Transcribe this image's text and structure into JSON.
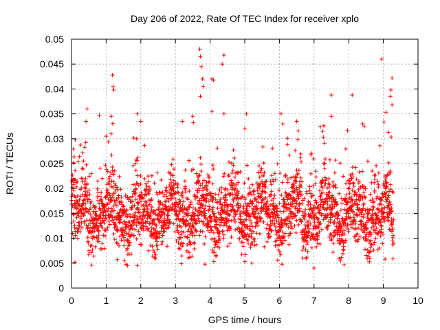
{
  "chart_data": {
    "type": "scatter",
    "title": "Day 206 of 2022, Rate Of TEC Index for receiver xplo",
    "xlabel": "GPS time / hours",
    "ylabel": "ROTI / TECUs",
    "xlim": [
      0,
      10
    ],
    "ylim": [
      0,
      0.05
    ],
    "x_ticks": [
      "0",
      "1",
      "2",
      "3",
      "4",
      "5",
      "6",
      "7",
      "8",
      "9",
      "10"
    ],
    "y_ticks": [
      "0",
      "0.005",
      "0.01",
      "0.015",
      "0.02",
      "0.025",
      "0.03",
      "0.035",
      "0.04",
      "0.045",
      "0.05"
    ],
    "grid": true,
    "marker": "+",
    "series_color": "#ff0000",
    "data_extent_x": [
      0,
      9.3
    ],
    "bulk_band": [
      0.006,
      0.024
    ],
    "notable_points": [
      {
        "x": 0.45,
        "y": 0.036
      },
      {
        "x": 0.42,
        "y": 0.0335
      },
      {
        "x": 1.18,
        "y": 0.0428
      },
      {
        "x": 1.2,
        "y": 0.0405
      },
      {
        "x": 1.22,
        "y": 0.0398
      },
      {
        "x": 1.0,
        "y": 0.0305
      },
      {
        "x": 1.15,
        "y": 0.0345
      },
      {
        "x": 1.9,
        "y": 0.035
      },
      {
        "x": 1.88,
        "y": 0.03
      },
      {
        "x": 2.0,
        "y": 0.0335
      },
      {
        "x": 3.2,
        "y": 0.0335
      },
      {
        "x": 3.5,
        "y": 0.0345
      },
      {
        "x": 3.7,
        "y": 0.048
      },
      {
        "x": 3.72,
        "y": 0.0465
      },
      {
        "x": 3.75,
        "y": 0.0445
      },
      {
        "x": 3.78,
        "y": 0.042
      },
      {
        "x": 3.8,
        "y": 0.0405
      },
      {
        "x": 3.72,
        "y": 0.0385
      },
      {
        "x": 4.05,
        "y": 0.042
      },
      {
        "x": 4.1,
        "y": 0.0418
      },
      {
        "x": 4.05,
        "y": 0.0355
      },
      {
        "x": 4.4,
        "y": 0.0468
      },
      {
        "x": 4.35,
        "y": 0.045
      },
      {
        "x": 4.4,
        "y": 0.035
      },
      {
        "x": 5.05,
        "y": 0.035
      },
      {
        "x": 5.0,
        "y": 0.032
      },
      {
        "x": 6.05,
        "y": 0.035
      },
      {
        "x": 6.1,
        "y": 0.033
      },
      {
        "x": 6.5,
        "y": 0.0335
      },
      {
        "x": 7.25,
        "y": 0.0315
      },
      {
        "x": 7.5,
        "y": 0.0388
      },
      {
        "x": 7.5,
        "y": 0.0345
      },
      {
        "x": 8.1,
        "y": 0.0388
      },
      {
        "x": 8.4,
        "y": 0.033
      },
      {
        "x": 8.45,
        "y": 0.0325
      },
      {
        "x": 8.95,
        "y": 0.046
      },
      {
        "x": 9.25,
        "y": 0.0422
      },
      {
        "x": 9.22,
        "y": 0.0398
      },
      {
        "x": 9.2,
        "y": 0.0385
      },
      {
        "x": 9.25,
        "y": 0.0368
      },
      {
        "x": 9.15,
        "y": 0.0313
      },
      {
        "x": 0.1,
        "y": 0.0052
      },
      {
        "x": 1.9,
        "y": 0.0045
      },
      {
        "x": 3.85,
        "y": 0.0048
      },
      {
        "x": 5.2,
        "y": 0.005
      },
      {
        "x": 7.0,
        "y": 0.004
      },
      {
        "x": 9.05,
        "y": 0.0058
      }
    ]
  }
}
